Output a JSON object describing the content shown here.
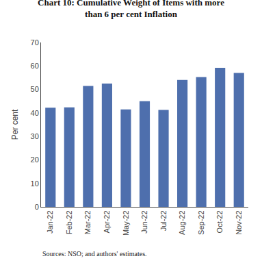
{
  "chart_data": {
    "type": "bar",
    "title": "Chart 10: Cumulative Weight of Items with more\nthan 6 per cent Inflation",
    "categories": [
      "Jan-22",
      "Feb-22",
      "Mar-22",
      "Apr-22",
      "May-22",
      "Jun-22",
      "Jul-22",
      "Aug-22",
      "Sep-22",
      "Oct-22",
      "Nov-22"
    ],
    "values": [
      42.2,
      42.4,
      51.5,
      52.5,
      41.5,
      45.0,
      41.3,
      54.0,
      55.3,
      59.2,
      57.0
    ],
    "color": "#4E6FAD",
    "ylabel": "Per cent",
    "ylim": [
      0,
      70
    ],
    "yticks": [
      0,
      10,
      20,
      30,
      40,
      50,
      60,
      70
    ],
    "grid": false,
    "annotations": [
      "Sources: NSO; and authors' estimates."
    ]
  }
}
